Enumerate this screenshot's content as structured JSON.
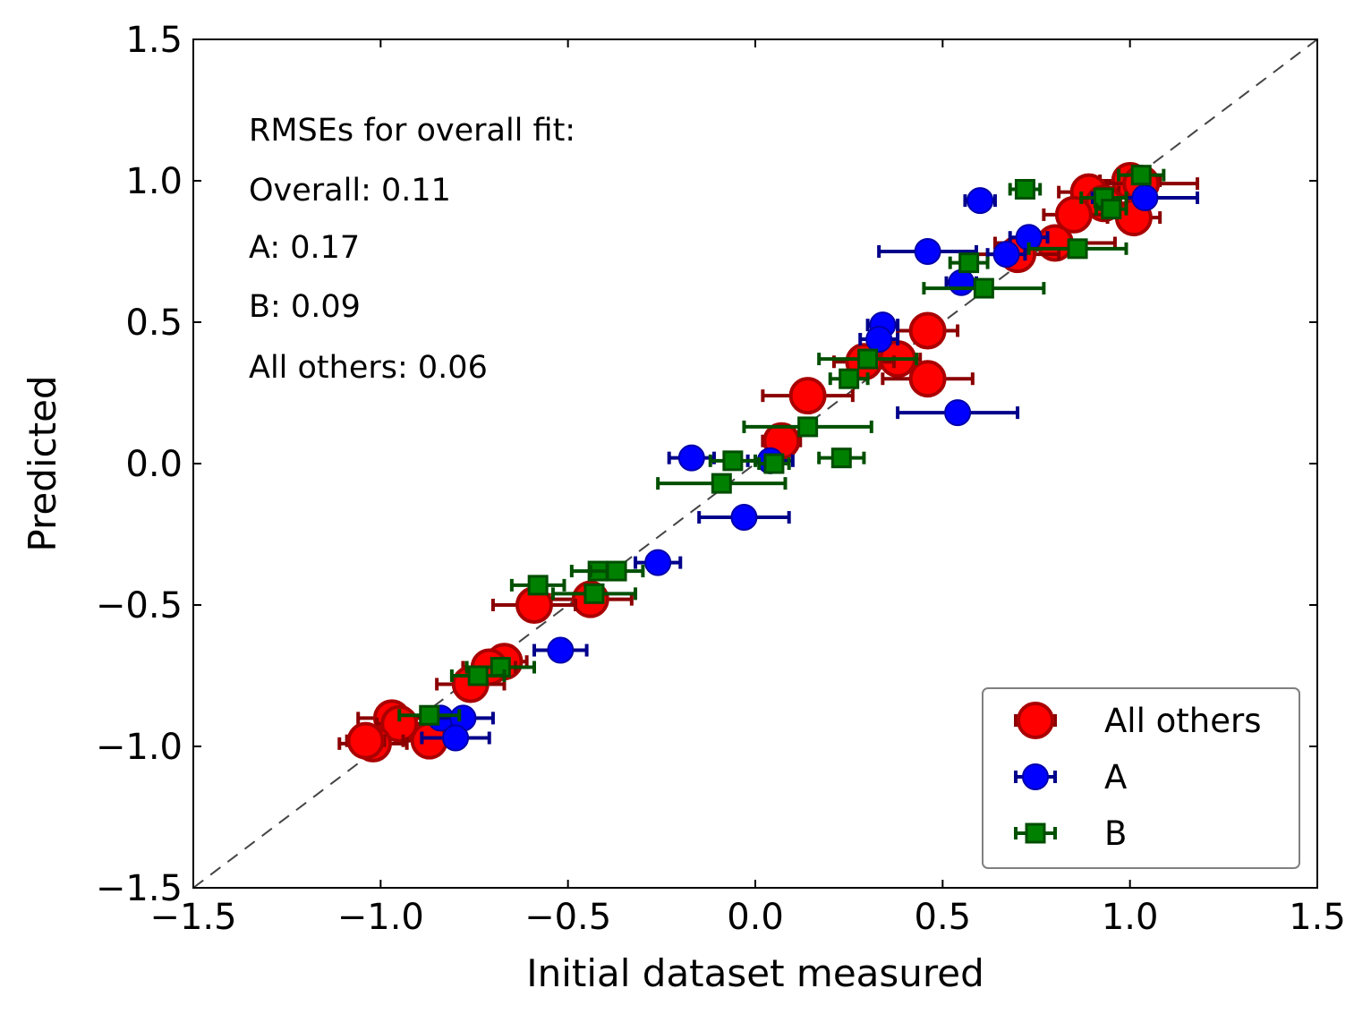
{
  "chart_data": {
    "type": "scatter",
    "xlabel": "Initial dataset measured",
    "ylabel": "Predicted",
    "xlim": [
      -1.5,
      1.5
    ],
    "ylim": [
      -1.5,
      1.5
    ],
    "x_ticks": [
      "−1.5",
      "−1.0",
      "−0.5",
      "0.0",
      "0.5",
      "1.0",
      "1.5"
    ],
    "y_ticks": [
      "−1.5",
      "−1.0",
      "−0.5",
      "0.0",
      "0.5",
      "1.0",
      "1.5"
    ],
    "x_tick_values": [
      -1.5,
      -1.0,
      -0.5,
      0.0,
      0.5,
      1.0,
      1.5
    ],
    "y_tick_values": [
      -1.5,
      -1.0,
      -0.5,
      0.0,
      0.5,
      1.0,
      1.5
    ],
    "diagonal": {
      "from": [
        -1.5,
        -1.5
      ],
      "to": [
        1.5,
        1.5
      ],
      "color": "#444444",
      "style": "dashed"
    },
    "annotations": [
      "RMSEs for overall fit:",
      "Overall: 0.11",
      "A: 0.17",
      "B: 0.09",
      "All others: 0.06"
    ],
    "legend_position": "lower-right",
    "grid": false,
    "series": [
      {
        "name": "All others",
        "marker": "circle-large",
        "face_color": "#ff0000",
        "edge_color": "#aa0000",
        "error_color": "#8b0000",
        "points": [
          {
            "x": 1.0,
            "y": 1.0,
            "xerr": 0.08
          },
          {
            "x": 1.03,
            "y": 0.99,
            "xerr": 0.15
          },
          {
            "x": 0.89,
            "y": 0.96,
            "xerr": 0.08
          },
          {
            "x": 0.93,
            "y": 0.92,
            "xerr": 0.07
          },
          {
            "x": 0.85,
            "y": 0.88,
            "xerr": 0.08
          },
          {
            "x": 1.01,
            "y": 0.87,
            "xerr": 0.07
          },
          {
            "x": 0.8,
            "y": 0.78,
            "xerr": 0.16
          },
          {
            "x": 0.7,
            "y": 0.74,
            "xerr": 0.11
          },
          {
            "x": 0.46,
            "y": 0.47,
            "xerr": 0.08
          },
          {
            "x": 0.38,
            "y": 0.37,
            "xerr": 0.06
          },
          {
            "x": 0.29,
            "y": 0.36,
            "xerr": 0.08
          },
          {
            "x": 0.46,
            "y": 0.3,
            "xerr": 0.12
          },
          {
            "x": 0.14,
            "y": 0.24,
            "xerr": 0.12
          },
          {
            "x": 0.07,
            "y": 0.08,
            "xerr": 0.05
          },
          {
            "x": -0.44,
            "y": -0.48,
            "xerr": 0.11
          },
          {
            "x": -0.59,
            "y": -0.5,
            "xerr": 0.11
          },
          {
            "x": -0.67,
            "y": -0.7,
            "xerr": 0.06
          },
          {
            "x": -0.71,
            "y": -0.72,
            "xerr": 0.07
          },
          {
            "x": -0.76,
            "y": -0.78,
            "xerr": 0.09
          },
          {
            "x": -0.97,
            "y": -0.9,
            "xerr": 0.09
          },
          {
            "x": -0.95,
            "y": -0.92,
            "xerr": 0.06
          },
          {
            "x": -0.87,
            "y": -0.98,
            "xerr": 0.07
          },
          {
            "x": -1.02,
            "y": -0.99,
            "xerr": 0.09
          },
          {
            "x": -1.04,
            "y": -0.98,
            "xerr": 0.05
          }
        ]
      },
      {
        "name": "A",
        "marker": "circle",
        "face_color": "#0000ff",
        "edge_color": "#0000aa",
        "error_color": "#00008b",
        "points": [
          {
            "x": 0.6,
            "y": 0.93,
            "xerr": 0.04
          },
          {
            "x": 1.04,
            "y": 0.94,
            "xerr": 0.14
          },
          {
            "x": 0.73,
            "y": 0.8,
            "xerr": 0.05
          },
          {
            "x": 0.46,
            "y": 0.75,
            "xerr": 0.13
          },
          {
            "x": 0.67,
            "y": 0.74,
            "xerr": 0.05
          },
          {
            "x": 0.55,
            "y": 0.64,
            "xerr": 0.04
          },
          {
            "x": 0.34,
            "y": 0.49,
            "xerr": 0.04
          },
          {
            "x": 0.33,
            "y": 0.44,
            "xerr": 0.05
          },
          {
            "x": 0.54,
            "y": 0.18,
            "xerr": 0.16
          },
          {
            "x": -0.17,
            "y": 0.02,
            "xerr": 0.06
          },
          {
            "x": 0.04,
            "y": 0.01,
            "xerr": 0.06
          },
          {
            "x": -0.03,
            "y": -0.19,
            "xerr": 0.12
          },
          {
            "x": -0.26,
            "y": -0.35,
            "xerr": 0.06
          },
          {
            "x": -0.52,
            "y": -0.66,
            "xerr": 0.07
          },
          {
            "x": -0.84,
            "y": -0.9,
            "xerr": 0.04
          },
          {
            "x": -0.78,
            "y": -0.9,
            "xerr": 0.08
          },
          {
            "x": -0.8,
            "y": -0.97,
            "xerr": 0.09
          }
        ]
      },
      {
        "name": "B",
        "marker": "square",
        "face_color": "#008000",
        "edge_color": "#004d00",
        "error_color": "#005000",
        "points": [
          {
            "x": 1.03,
            "y": 1.02,
            "xerr": 0.06
          },
          {
            "x": 0.72,
            "y": 0.97,
            "xerr": 0.04
          },
          {
            "x": 0.93,
            "y": 0.94,
            "xerr": 0.06
          },
          {
            "x": 0.95,
            "y": 0.9,
            "xerr": 0.04
          },
          {
            "x": 0.86,
            "y": 0.76,
            "xerr": 0.13
          },
          {
            "x": 0.57,
            "y": 0.71,
            "xerr": 0.05
          },
          {
            "x": 0.61,
            "y": 0.62,
            "xerr": 0.16
          },
          {
            "x": 0.3,
            "y": 0.37,
            "xerr": 0.13
          },
          {
            "x": 0.25,
            "y": 0.3,
            "xerr": 0.05
          },
          {
            "x": 0.14,
            "y": 0.13,
            "xerr": 0.17
          },
          {
            "x": 0.23,
            "y": 0.02,
            "xerr": 0.06
          },
          {
            "x": -0.06,
            "y": 0.01,
            "xerr": 0.06
          },
          {
            "x": 0.05,
            "y": 0.0,
            "xerr": 0.04
          },
          {
            "x": -0.09,
            "y": -0.07,
            "xerr": 0.17
          },
          {
            "x": -0.42,
            "y": -0.38,
            "xerr": 0.07
          },
          {
            "x": -0.37,
            "y": -0.38,
            "xerr": 0.07
          },
          {
            "x": -0.58,
            "y": -0.43,
            "xerr": 0.07
          },
          {
            "x": -0.43,
            "y": -0.46,
            "xerr": 0.11
          },
          {
            "x": -0.68,
            "y": -0.72,
            "xerr": 0.09
          },
          {
            "x": -0.74,
            "y": -0.75,
            "xerr": 0.07
          },
          {
            "x": -0.87,
            "y": -0.89,
            "xerr": 0.08
          }
        ]
      }
    ]
  }
}
